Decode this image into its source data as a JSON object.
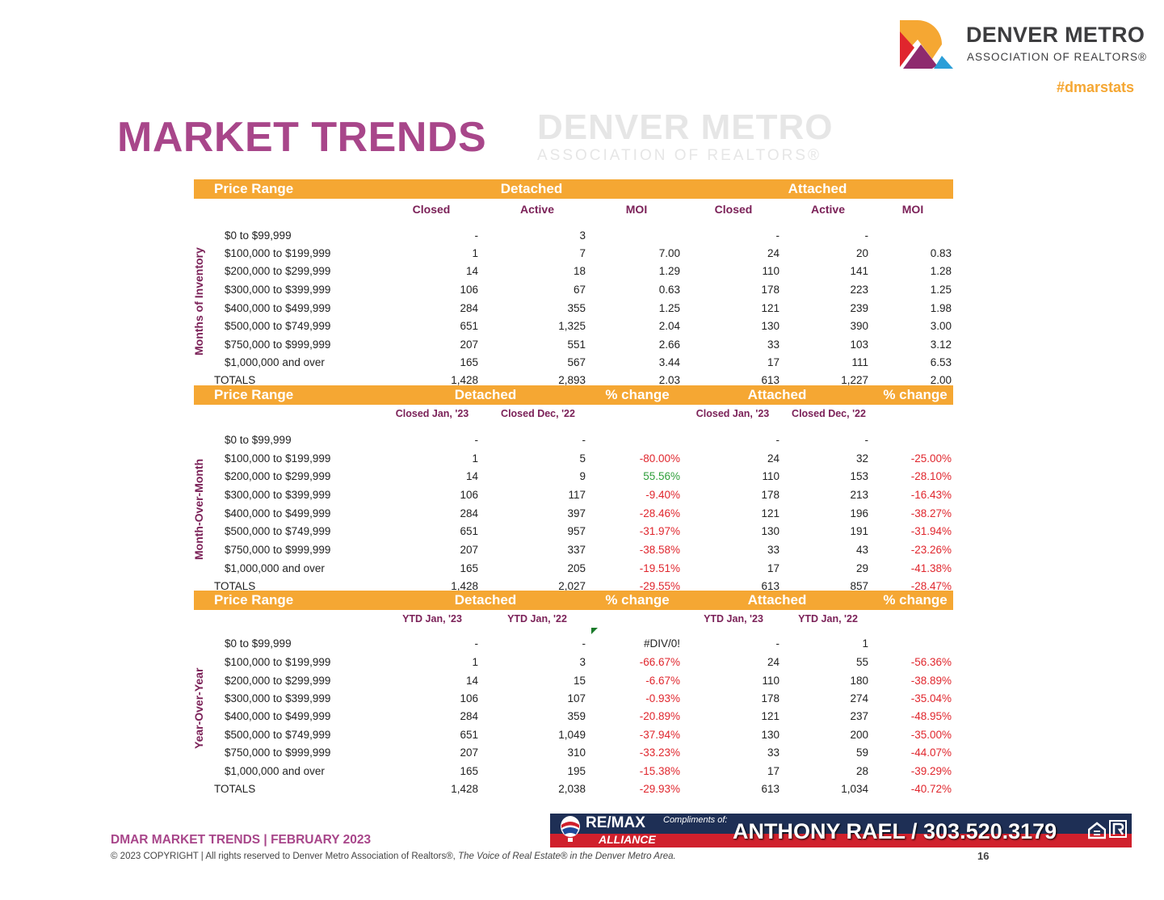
{
  "header": {
    "org_name": "DENVER METRO",
    "org_subtitle": "ASSOCIATION OF REALTORS®",
    "hashtag": "#dmarstats",
    "page_title": "MARKET TRENDS"
  },
  "colors": {
    "orange": "#F5A733",
    "purple": "#A8468A",
    "dark_purple": "#7B2158",
    "negative": "#E0262D",
    "positive": "#2E9E3A"
  },
  "sections": [
    {
      "side_label": "Months of Inventory",
      "band": [
        "Price Range",
        "Detached",
        "Attached"
      ],
      "subheaders": [
        "Closed",
        "Active",
        "MOI",
        "Closed",
        "Active",
        "MOI"
      ],
      "rows": [
        [
          "$0 to $99,999",
          "-",
          "3",
          "",
          "-",
          "-",
          ""
        ],
        [
          "$100,000 to $199,999",
          "1",
          "7",
          "7.00",
          "24",
          "20",
          "0.83"
        ],
        [
          "$200,000 to $299,999",
          "14",
          "18",
          "1.29",
          "110",
          "141",
          "1.28"
        ],
        [
          "$300,000 to $399,999",
          "106",
          "67",
          "0.63",
          "178",
          "223",
          "1.25"
        ],
        [
          "$400,000 to $499,999",
          "284",
          "355",
          "1.25",
          "121",
          "239",
          "1.98"
        ],
        [
          "$500,000 to $749,999",
          "651",
          "1,325",
          "2.04",
          "130",
          "390",
          "3.00"
        ],
        [
          "$750,000 to $999,999",
          "207",
          "551",
          "2.66",
          "33",
          "103",
          "3.12"
        ],
        [
          "$1,000,000 and over",
          "165",
          "567",
          "3.44",
          "17",
          "111",
          "6.53"
        ],
        [
          "TOTALS",
          "1,428",
          "2,893",
          "2.03",
          "613",
          "1,227",
          "2.00"
        ]
      ]
    },
    {
      "side_label": "Month-Over-Month",
      "band": [
        "Price Range",
        "Detached",
        "% change",
        "Attached",
        "% change"
      ],
      "subheaders": [
        "Closed Jan, '23",
        "Closed Dec, '22",
        "Closed Jan, '23",
        "Closed Dec, '22"
      ],
      "rows": [
        [
          "$0 to $99,999",
          "-",
          "-",
          "",
          "-",
          "-",
          ""
        ],
        [
          "$100,000 to $199,999",
          "1",
          "5",
          "-80.00%",
          "24",
          "32",
          "-25.00%"
        ],
        [
          "$200,000 to $299,999",
          "14",
          "9",
          "55.56%",
          "110",
          "153",
          "-28.10%"
        ],
        [
          "$300,000 to $399,999",
          "106",
          "117",
          "-9.40%",
          "178",
          "213",
          "-16.43%"
        ],
        [
          "$400,000 to $499,999",
          "284",
          "397",
          "-28.46%",
          "121",
          "196",
          "-38.27%"
        ],
        [
          "$500,000 to $749,999",
          "651",
          "957",
          "-31.97%",
          "130",
          "191",
          "-31.94%"
        ],
        [
          "$750,000 to $999,999",
          "207",
          "337",
          "-38.58%",
          "33",
          "43",
          "-23.26%"
        ],
        [
          "$1,000,000 and over",
          "165",
          "205",
          "-19.51%",
          "17",
          "29",
          "-41.38%"
        ],
        [
          "TOTALS",
          "1,428",
          "2,027",
          "-29.55%",
          "613",
          "857",
          "-28.47%"
        ]
      ]
    },
    {
      "side_label": "Year-Over-Year",
      "band": [
        "Price Range",
        "Detached",
        "% change",
        "Attached",
        "% change"
      ],
      "subheaders": [
        "YTD Jan, '23",
        "YTD Jan, '22",
        "YTD Jan, '23",
        "YTD Jan, '22"
      ],
      "rows": [
        [
          "$0 to $99,999",
          "-",
          "-",
          "#DIV/0!",
          "-",
          "1",
          ""
        ],
        [
          "$100,000 to $199,999",
          "1",
          "3",
          "-66.67%",
          "24",
          "55",
          "-56.36%"
        ],
        [
          "$200,000 to $299,999",
          "14",
          "15",
          "-6.67%",
          "110",
          "180",
          "-38.89%"
        ],
        [
          "$300,000 to $399,999",
          "106",
          "107",
          "-0.93%",
          "178",
          "274",
          "-35.04%"
        ],
        [
          "$400,000 to $499,999",
          "284",
          "359",
          "-20.89%",
          "121",
          "237",
          "-48.95%"
        ],
        [
          "$500,000 to $749,999",
          "651",
          "1,049",
          "-37.94%",
          "130",
          "200",
          "-35.00%"
        ],
        [
          "$750,000 to $999,999",
          "207",
          "310",
          "-33.23%",
          "33",
          "59",
          "-44.07%"
        ],
        [
          "$1,000,000 and over",
          "165",
          "195",
          "-15.38%",
          "17",
          "28",
          "-39.29%"
        ],
        [
          "TOTALS",
          "1,428",
          "2,038",
          "-29.93%",
          "613",
          "1,034",
          "-40.72%"
        ]
      ]
    }
  ],
  "watermark": {
    "line1": "DENVER METRO",
    "line2": "ASSOCIATION OF REALTORS®"
  },
  "footer": {
    "title": "DMAR MARKET TRENDS | FEBRUARY 2023",
    "copyright_prefix": "© 2023 COPYRIGHT | All rights reserved to Denver Metro Association of Realtors®, ",
    "copyright_italic": "The Voice of Real Estate® in the Denver Metro Area.",
    "page_number": "16"
  },
  "banner": {
    "brand_line1": "RE/MAX",
    "brand_line2": "ALLIANCE",
    "compliments": "Compliments of:",
    "agent": "ANTHONY RAEL / 303.520.3179"
  }
}
